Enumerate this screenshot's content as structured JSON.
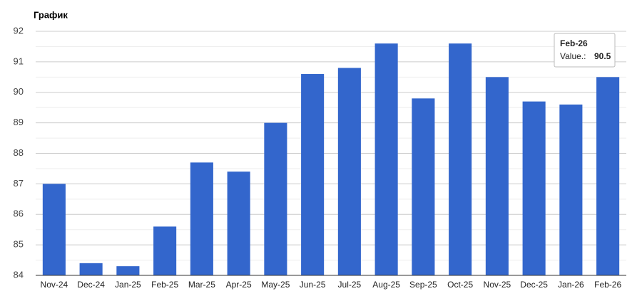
{
  "chart_data": {
    "type": "bar",
    "title": "График",
    "categories": [
      "Nov-24",
      "Dec-24",
      "Jan-25",
      "Feb-25",
      "Mar-25",
      "Apr-25",
      "May-25",
      "Jun-25",
      "Jul-25",
      "Aug-25",
      "Sep-25",
      "Oct-25",
      "Nov-25",
      "Dec-25",
      "Jan-26",
      "Feb-26"
    ],
    "values": [
      87,
      84.4,
      84.3,
      85.6,
      87.7,
      87.4,
      89,
      90.6,
      90.8,
      91.6,
      89.8,
      91.6,
      90.5,
      89.7,
      89.6,
      90.5
    ],
    "color": "#3366cc",
    "ylim": [
      84,
      92
    ],
    "yticks": [
      84,
      85,
      86,
      87,
      88,
      89,
      90,
      91,
      92
    ],
    "grid": true,
    "tooltip_label": "Value.:"
  }
}
